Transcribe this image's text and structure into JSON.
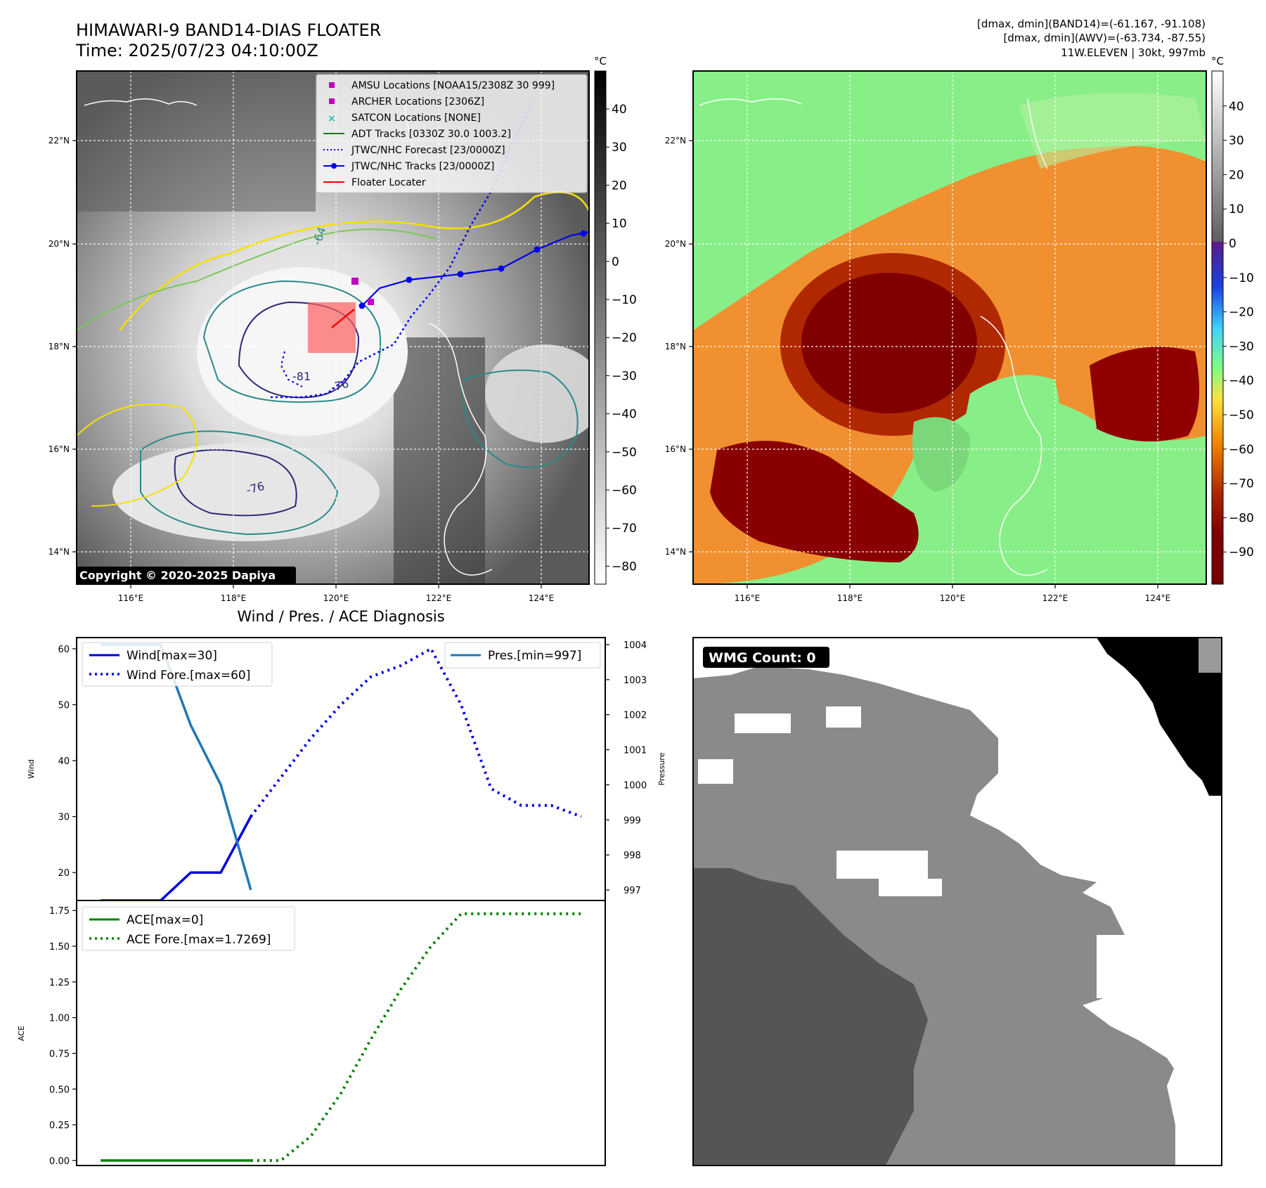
{
  "header": {
    "title_line1": "HIMAWARI-9 BAND14-DIAS FLOATER",
    "title_line2": "Time: 2025/07/23 04:10:00Z",
    "info_line1": "[dmax, dmin](BAND14)=(-61.167, -91.108)",
    "info_line2": "[dmax, dmin](AWV)=(-63.734, -87.55)",
    "info_line3": "11W.ELEVEN | 30kt, 997mb"
  },
  "maps": {
    "lon_ticks": [
      "116°E",
      "118°E",
      "120°E",
      "122°E",
      "124°E"
    ],
    "lat_ticks": [
      "22°N",
      "20°N",
      "18°N",
      "16°N",
      "14°N"
    ],
    "colorbar_unit": "°C",
    "left_colorbar_ticks": [
      "40",
      "30",
      "20",
      "10",
      "0",
      "−10",
      "−20",
      "−30",
      "−40",
      "−50",
      "−60",
      "−70",
      "−80"
    ],
    "right_colorbar_ticks": [
      "40",
      "30",
      "20",
      "10",
      "0",
      "−10",
      "−20",
      "−30",
      "−40",
      "−50",
      "−60",
      "−70",
      "−80",
      "−90"
    ],
    "contour_labels": [
      "-64",
      "-81",
      "-76",
      "-76"
    ],
    "copyright": "Copyright © 2020-2025 Dapiya",
    "legend": [
      {
        "label": "AMSU Locations [NOAA15/2308Z 30 999]",
        "color": "#c000c0"
      },
      {
        "label": "ARCHER Locations [2306Z]",
        "color": "#c000c0"
      },
      {
        "label": "SATCON Locations [NONE]",
        "color": "#20c0c0"
      },
      {
        "label": "ADT Tracks [0330Z 30.0 1003.2]",
        "color": "#1a7a1a"
      },
      {
        "label": "JTWC/NHC Forecast [23/0000Z]",
        "color": "#0000ee"
      },
      {
        "label": "JTWC/NHC Tracks [23/0000Z]",
        "color": "#0000ee"
      },
      {
        "label": "Floater Locater",
        "color": "#ff0000"
      }
    ]
  },
  "chart_data": [
    {
      "type": "line",
      "title": "Wind / Pres. / ACE Diagnosis",
      "ylabel": "Wind",
      "y2label": "Pressure",
      "ylim": [
        15,
        62
      ],
      "y2lim": [
        996.7,
        1004.2
      ],
      "yticks": [
        20,
        30,
        40,
        50,
        60
      ],
      "y2ticks": [
        997,
        998,
        999,
        1000,
        1001,
        1002,
        1003,
        1004
      ],
      "xlim": [
        -0.8,
        16.8
      ],
      "series": [
        {
          "name": "Wind[max=30]",
          "color": "#0000dd",
          "style": "solid",
          "x": [
            0,
            1,
            2,
            3,
            4,
            5
          ],
          "values": [
            15,
            15,
            15,
            20,
            20,
            30
          ]
        },
        {
          "name": "Wind Fore.[max=60]",
          "color": "#0000dd",
          "style": "dotted",
          "x": [
            5,
            6,
            7,
            8,
            9,
            10,
            11,
            12,
            13,
            14,
            15,
            16
          ],
          "values": [
            30,
            37,
            44,
            50,
            55,
            57,
            60,
            50,
            35,
            32,
            32,
            30
          ]
        },
        {
          "name": "Pres.[min=997]",
          "color": "#1f77b4",
          "style": "solid",
          "axis": "y2",
          "x": [
            0,
            1,
            2,
            3,
            4,
            5
          ],
          "values": [
            1004,
            1004,
            1004,
            1001.7,
            1000,
            997
          ]
        }
      ],
      "legend_left": [
        "Wind[max=30]",
        "Wind Fore.[max=60]"
      ],
      "legend_right": [
        "Pres.[min=997]"
      ]
    },
    {
      "type": "line",
      "ylabel": "ACE",
      "ylim": [
        -0.035,
        1.82
      ],
      "yticks": [
        "0.00",
        "0.25",
        "0.50",
        "0.75",
        "1.00",
        "1.25",
        "1.50",
        "1.75"
      ],
      "xlim": [
        -0.8,
        16.8
      ],
      "series": [
        {
          "name": "ACE[max=0]",
          "color": "#008000",
          "style": "solid",
          "x": [
            0,
            1,
            2,
            3,
            4,
            5
          ],
          "values": [
            0,
            0,
            0,
            0,
            0,
            0
          ]
        },
        {
          "name": "ACE Fore.[max=1.7269]",
          "color": "#008000",
          "style": "dotted",
          "x": [
            5,
            6,
            7,
            8,
            9,
            10,
            11,
            12,
            13,
            14,
            15,
            16
          ],
          "values": [
            0,
            0,
            0.17,
            0.47,
            0.85,
            1.2,
            1.5,
            1.727,
            1.727,
            1.727,
            1.727,
            1.727
          ]
        }
      ]
    }
  ],
  "wmg": {
    "label": "WMG Count: 0"
  }
}
